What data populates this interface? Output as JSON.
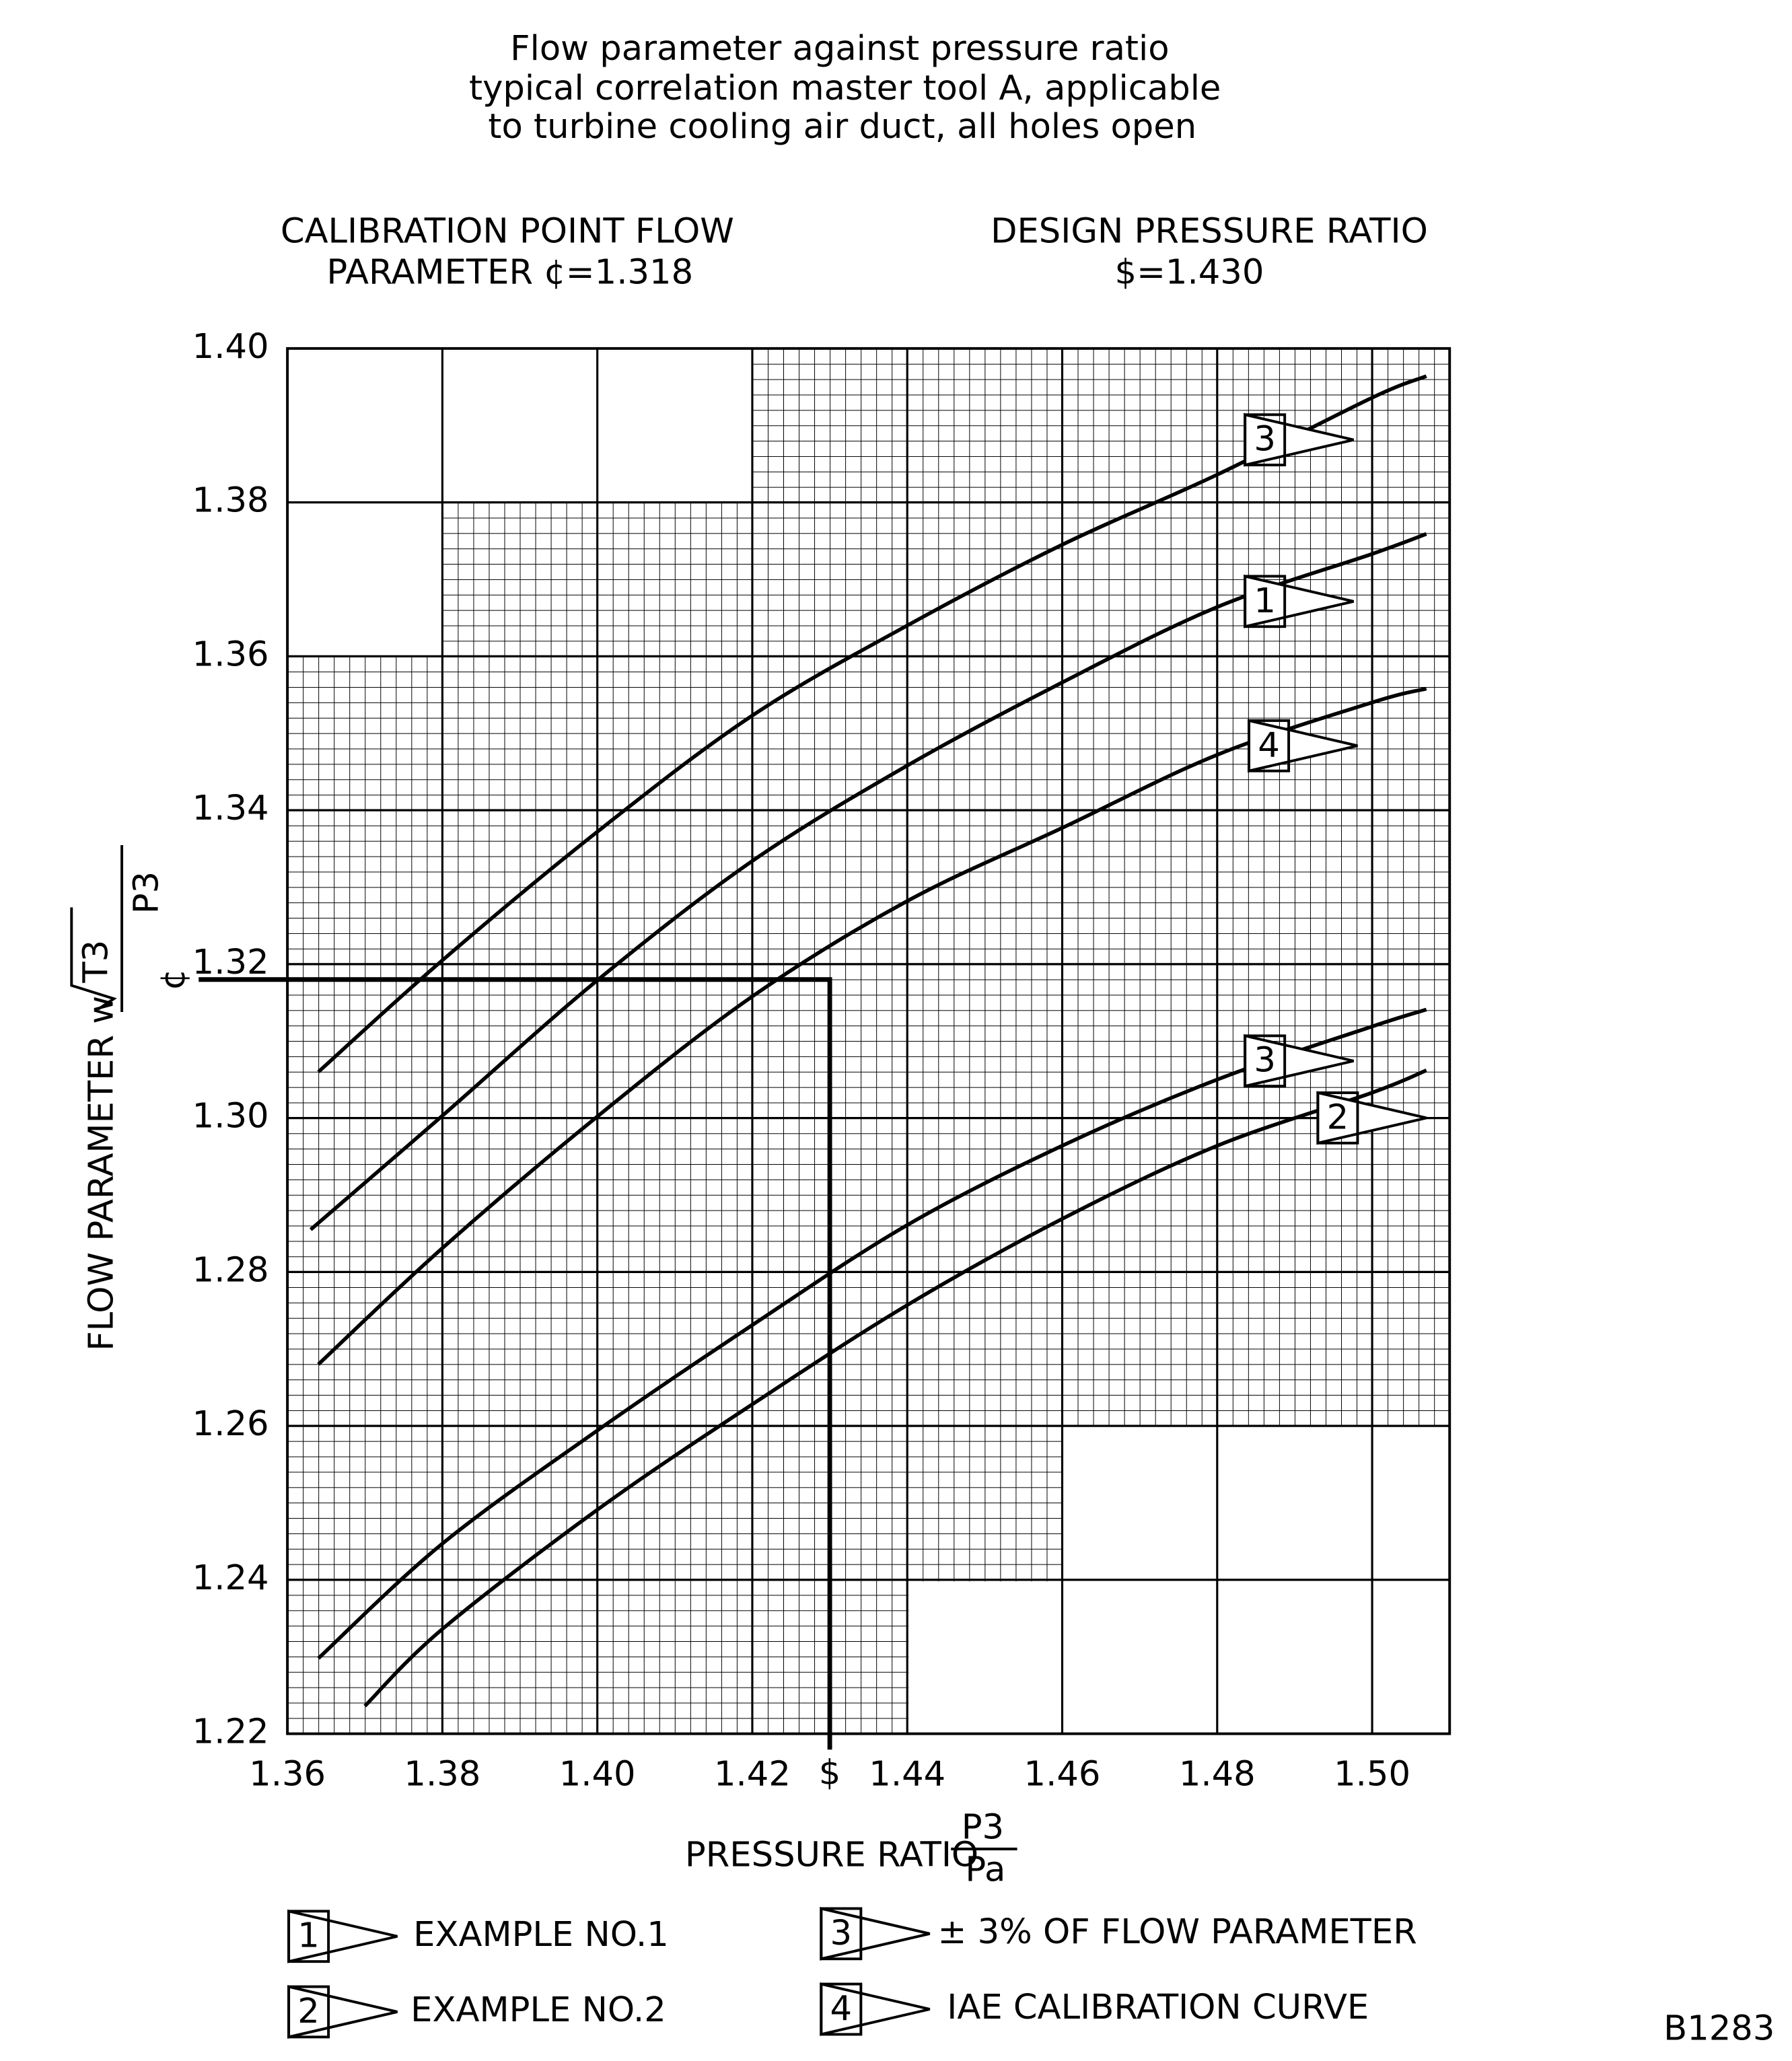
{
  "chart_data": {
    "type": "line",
    "title": [
      "Flow parameter against pressure ratio",
      "typical correlation master tool A, applicable",
      "to turbine cooling air duct, all holes open"
    ],
    "calibration_heading": [
      "CALIBRATION POINT FLOW",
      "PARAMETER ¢=1.318"
    ],
    "design_heading": [
      "DESIGN PRESSURE RATIO",
      "$=1.430"
    ],
    "y_label": {
      "text": "FLOW PARAMETER w",
      "numerator": "T3",
      "denominator": "P3"
    },
    "x_label": {
      "text": "PRESSURE RATIO",
      "numerator": "P3",
      "denominator": "Pa"
    },
    "calibration": {
      "x": 1.43,
      "y": 1.318,
      "x_symbol": "$",
      "y_symbol": "¢"
    },
    "xlim": [
      1.36,
      1.51
    ],
    "ylim": [
      1.22,
      1.4
    ],
    "xticks": [
      1.36,
      1.38,
      {
        "value": 1.4,
        "label": "1.40"
      },
      1.42,
      1.44,
      1.46,
      1.48,
      {
        "value": 1.5,
        "label": "1.50"
      }
    ],
    "yticks": [
      1.22,
      1.24,
      1.26,
      1.28,
      {
        "value": 1.3,
        "label": "1.30"
      },
      1.32,
      1.34,
      1.36,
      1.38,
      {
        "value": 1.4,
        "label": "1.40"
      }
    ],
    "grid": true,
    "series": [
      {
        "name": "3",
        "color": "#000000",
        "x": [
          1.364,
          1.38,
          1.4,
          1.42,
          1.44,
          1.46,
          1.48,
          1.5,
          1.507
        ],
        "values": [
          1.306,
          1.3205,
          1.3372,
          1.3523,
          1.364,
          1.3745,
          1.3836,
          1.3936,
          1.3964
        ]
      },
      {
        "name": "1",
        "color": "#000000",
        "x": [
          1.363,
          1.38,
          1.4,
          1.42,
          1.44,
          1.46,
          1.48,
          1.5,
          1.507
        ],
        "values": [
          1.2855,
          1.3003,
          1.3179,
          1.3334,
          1.3458,
          1.3566,
          1.3664,
          1.3733,
          1.3759
        ]
      },
      {
        "name": "4",
        "color": "#000000",
        "x": [
          1.364,
          1.38,
          1.4,
          1.42,
          1.44,
          1.46,
          1.48,
          1.5,
          1.507
        ],
        "values": [
          1.268,
          1.2831,
          1.3002,
          1.3158,
          1.3282,
          1.3377,
          1.3472,
          1.354,
          1.3558
        ]
      },
      {
        "name": "3",
        "color": "#000000",
        "x": [
          1.364,
          1.38,
          1.4,
          1.42,
          1.44,
          1.46,
          1.48,
          1.5,
          1.507
        ],
        "values": [
          1.2298,
          1.2447,
          1.2594,
          1.2731,
          1.2861,
          1.2964,
          1.305,
          1.3119,
          1.3141
        ]
      },
      {
        "name": "2",
        "color": "#000000",
        "x": [
          1.37,
          1.38,
          1.4,
          1.42,
          1.44,
          1.46,
          1.48,
          1.5,
          1.507
        ],
        "values": [
          1.2236,
          1.2336,
          1.2491,
          1.2628,
          1.2757,
          1.2869,
          1.2964,
          1.3033,
          1.3062
        ]
      }
    ],
    "legend": [
      {
        "marker": "1",
        "label": "EXAMPLE NO.1"
      },
      {
        "marker": "2",
        "label": "EXAMPLE NO.2"
      },
      {
        "marker": "3",
        "label": "± 3% OF FLOW PARAMETER"
      },
      {
        "marker": "4",
        "label": "IAE CALIBRATION CURVE"
      }
    ],
    "figure_id": "B1283"
  }
}
